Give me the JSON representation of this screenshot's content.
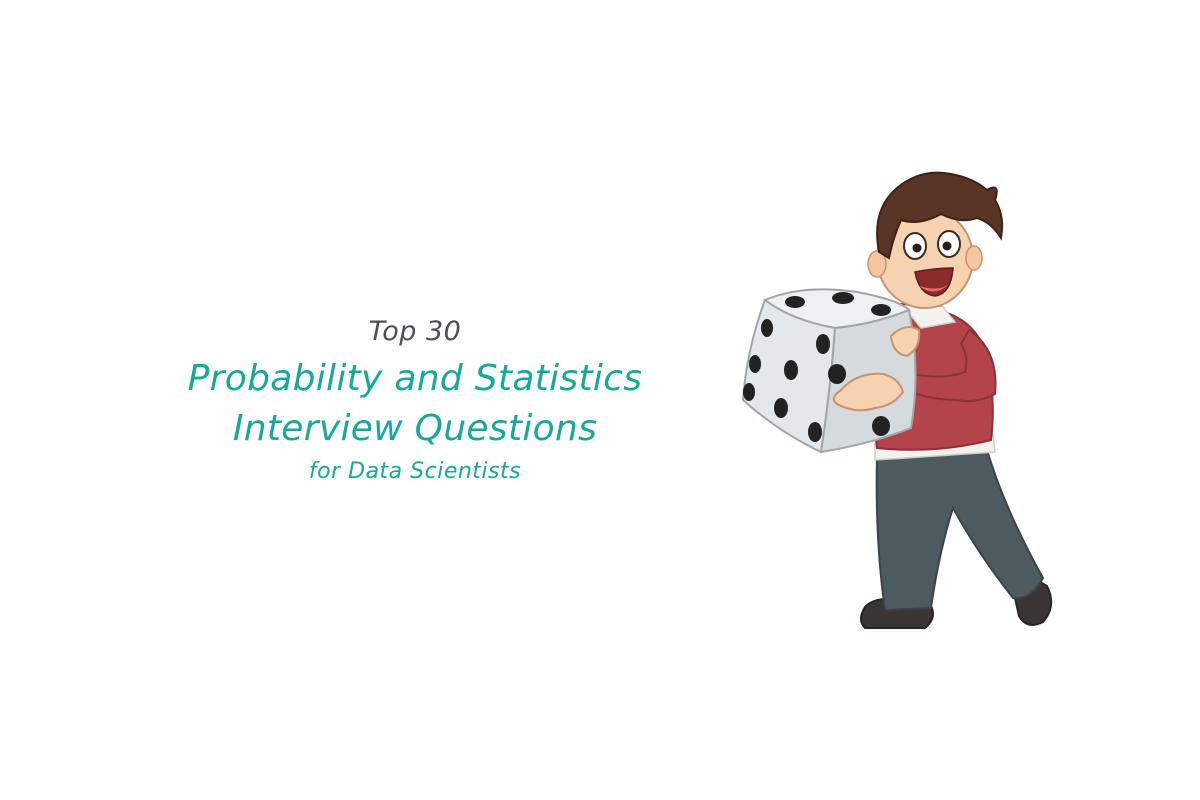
{
  "hero": {
    "kicker": "Top 30",
    "headline_line1": "Probability and Statistics",
    "headline_line2": "Interview Questions",
    "subline": "for Data Scientists"
  },
  "colors": {
    "accent": "#15a99a",
    "kicker": "#4d4f57",
    "background": "#ffffff"
  },
  "illustration": {
    "icon": "boy-holding-die-icon"
  }
}
